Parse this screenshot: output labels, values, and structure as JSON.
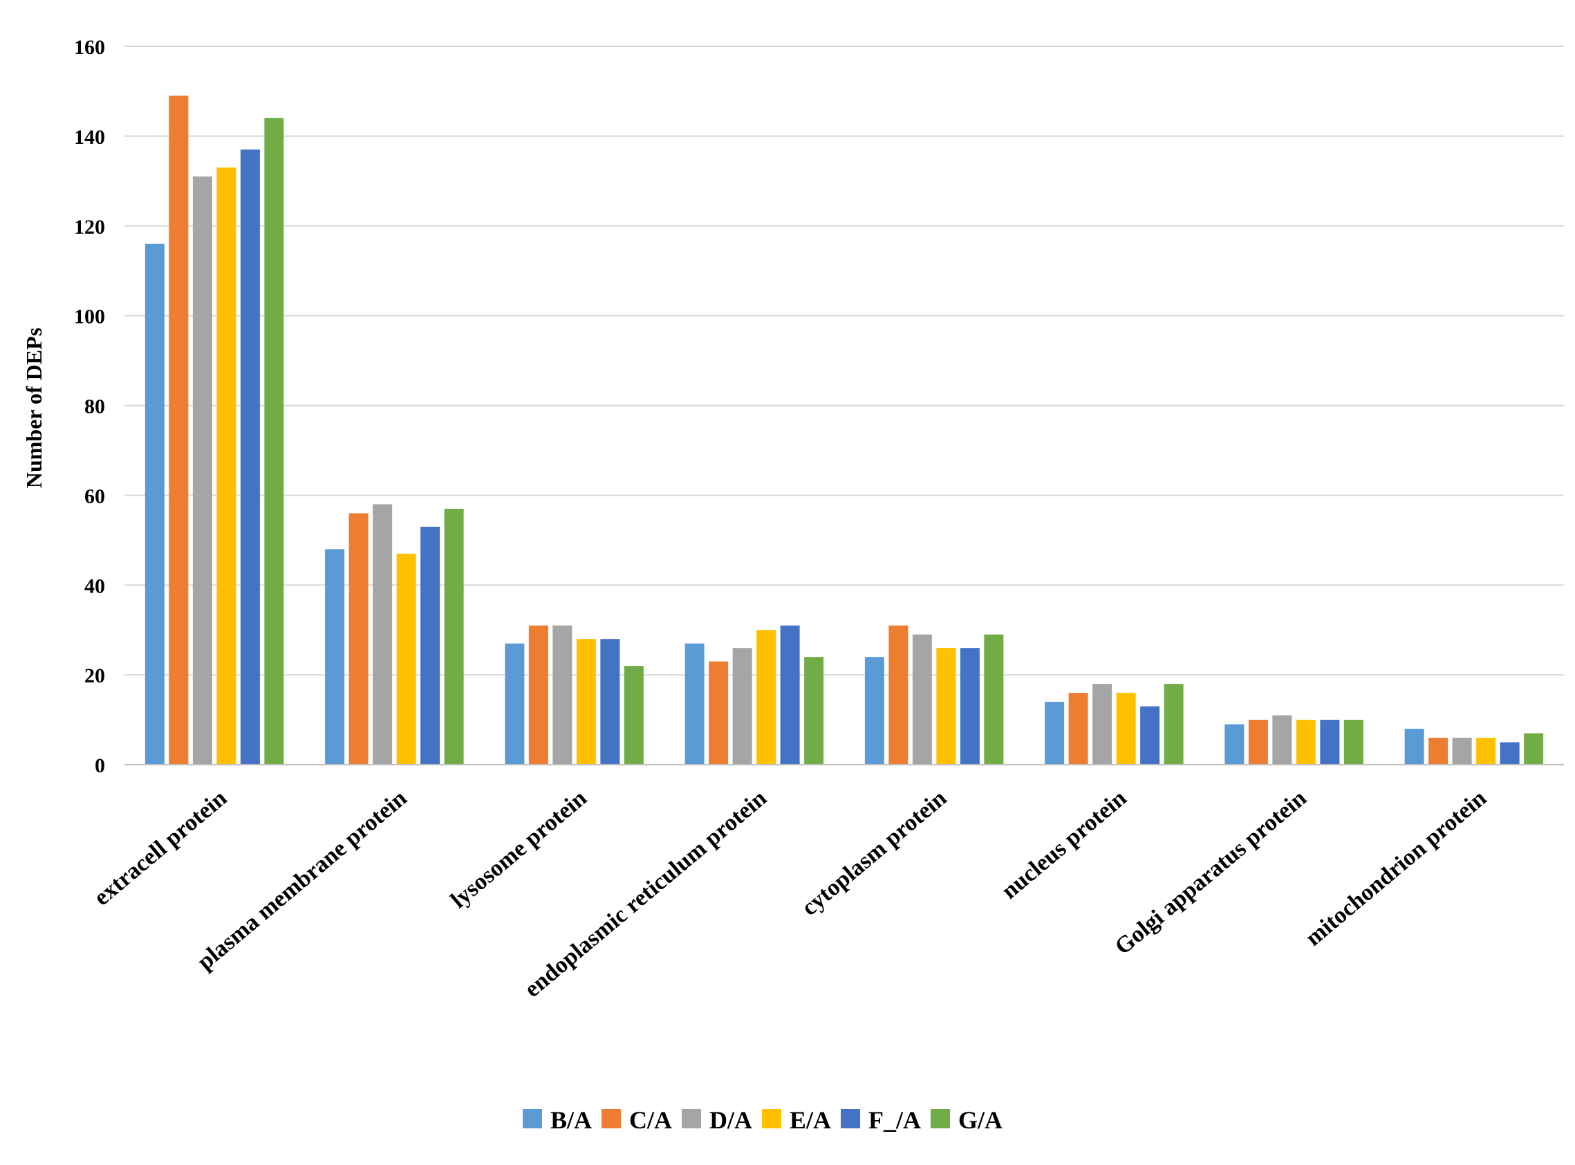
{
  "chart_data": {
    "type": "bar",
    "title": "",
    "xlabel": "",
    "ylabel": "Number of DEPs",
    "ylim": [
      0,
      160
    ],
    "yticks": [
      "0",
      "20",
      "40",
      "60",
      "80",
      "100",
      "120",
      "140",
      "160"
    ],
    "grid": true,
    "legend_position": "bottom",
    "categories": [
      "extracell protein",
      "plasma membrane protein",
      "lysosome protein",
      "endoplasmic reticulum protein",
      "cytoplasm protein",
      "nucleus protein",
      "Golgi apparatus protein",
      "mitochondrion protein"
    ],
    "series": [
      {
        "name": "B/A",
        "color": "#5B9BD5",
        "values": [
          116,
          48,
          27,
          27,
          24,
          14,
          9,
          8
        ]
      },
      {
        "name": "C/A",
        "color": "#ED7D31",
        "values": [
          149,
          56,
          31,
          23,
          31,
          16,
          10,
          6
        ]
      },
      {
        "name": "D/A",
        "color": "#A5A5A5",
        "values": [
          131,
          58,
          31,
          26,
          29,
          18,
          11,
          6
        ]
      },
      {
        "name": "E/A",
        "color": "#FFC000",
        "values": [
          133,
          47,
          28,
          30,
          26,
          16,
          10,
          6
        ]
      },
      {
        "name": "F_/A",
        "color": "#4472C4",
        "values": [
          137,
          53,
          28,
          31,
          26,
          13,
          10,
          5
        ]
      },
      {
        "name": "G/A",
        "color": "#70AD47",
        "values": [
          144,
          57,
          22,
          24,
          29,
          18,
          10,
          7
        ]
      }
    ]
  }
}
